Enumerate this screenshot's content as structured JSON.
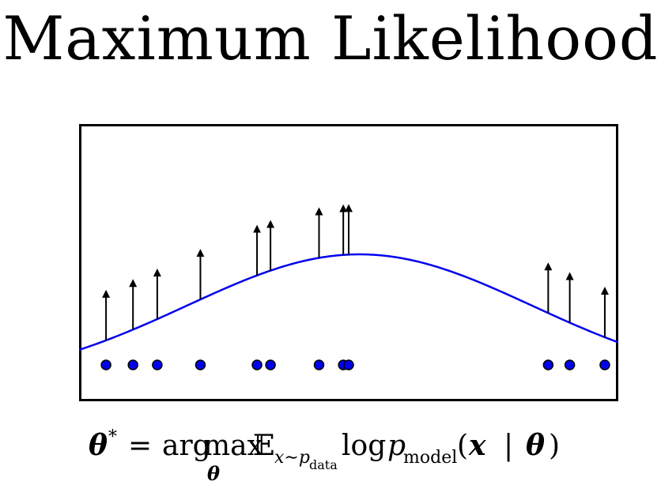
{
  "title": "Maximum Likelihood",
  "formula": {
    "theta": "θ",
    "star": "*",
    "equals": "=",
    "argmax_arg": "arg",
    "argmax_max": "max",
    "argmax_sub": "θ",
    "expect": "𝔼",
    "expect_sub_x": "x∼p",
    "expect_sub_sub": "data",
    "log": "log",
    "p": "p",
    "p_sub": "model",
    "open_paren": "(",
    "x": "x",
    "bar": "|",
    "theta_arg": "θ",
    "close_paren": ")"
  },
  "colors": {
    "curve": "#0000ee",
    "point_fill": "#0000ee",
    "arrow": "#000000",
    "frame": "#000000"
  },
  "chart_data": {
    "type": "scatter",
    "samples": [
      0.05,
      0.1,
      0.145,
      0.225,
      0.33,
      0.355,
      0.445,
      0.49,
      0.5,
      0.87,
      0.91,
      0.975
    ],
    "density": {
      "family": "gaussian",
      "mean": 0.52,
      "std": 0.32
    }
  }
}
